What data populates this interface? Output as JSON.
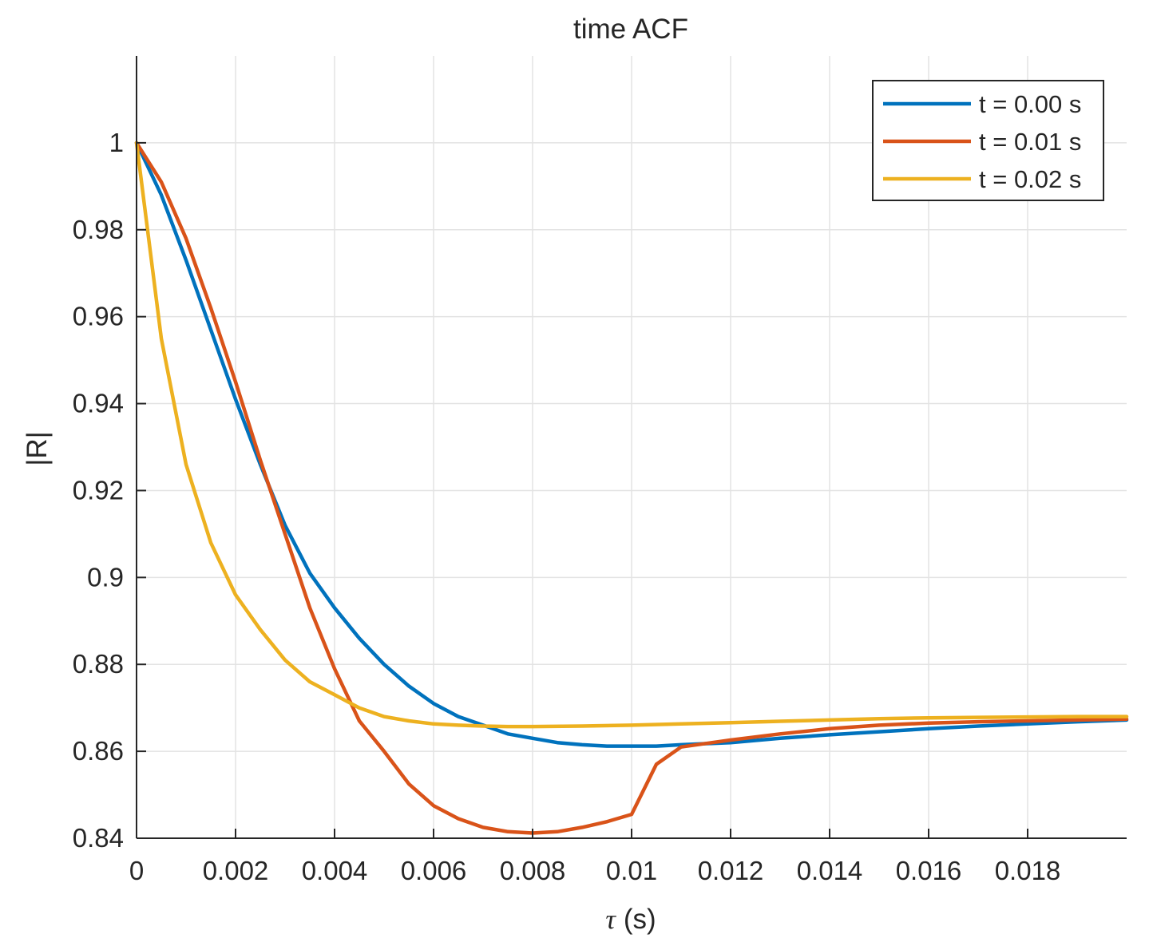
{
  "chart_data": {
    "type": "line",
    "title": "time ACF",
    "xlabel_symbol": "τ",
    "xlabel_unit": "(s)",
    "ylabel": "|R|",
    "xlim": [
      0,
      0.02
    ],
    "ylim": [
      0.84,
      1.02
    ],
    "grid": true,
    "legend_position": "top-right",
    "x_ticks": [
      0,
      0.002,
      0.004,
      0.006,
      0.008,
      0.01,
      0.012,
      0.014,
      0.016,
      0.018
    ],
    "x_tick_labels": [
      "0",
      "0.002",
      "0.004",
      "0.006",
      "0.008",
      "0.01",
      "0.012",
      "0.014",
      "0.016",
      "0.018"
    ],
    "y_ticks": [
      0.84,
      0.86,
      0.88,
      0.9,
      0.92,
      0.94,
      0.96,
      0.98,
      1.0
    ],
    "y_tick_labels": [
      "0.84",
      "0.86",
      "0.88",
      "0.9",
      "0.92",
      "0.94",
      "0.96",
      "0.98",
      "1"
    ],
    "series": [
      {
        "name": "t = 0.00 s",
        "color": "#0072BD",
        "x": [
          0,
          0.0005,
          0.001,
          0.0015,
          0.002,
          0.0025,
          0.003,
          0.0035,
          0.004,
          0.0045,
          0.005,
          0.0055,
          0.006,
          0.0065,
          0.007,
          0.0075,
          0.008,
          0.0085,
          0.009,
          0.0095,
          0.01,
          0.0105,
          0.011,
          0.012,
          0.013,
          0.014,
          0.015,
          0.016,
          0.017,
          0.018,
          0.019,
          0.02
        ],
        "values": [
          1.0,
          0.988,
          0.973,
          0.957,
          0.941,
          0.926,
          0.912,
          0.901,
          0.893,
          0.886,
          0.88,
          0.875,
          0.871,
          0.868,
          0.866,
          0.864,
          0.863,
          0.862,
          0.8615,
          0.8612,
          0.8612,
          0.8612,
          0.8615,
          0.862,
          0.863,
          0.8638,
          0.8645,
          0.8652,
          0.8658,
          0.8663,
          0.8668,
          0.8672
        ]
      },
      {
        "name": "t = 0.01 s",
        "color": "#D95319",
        "x": [
          0,
          0.0005,
          0.001,
          0.0015,
          0.002,
          0.0025,
          0.003,
          0.0035,
          0.004,
          0.0045,
          0.005,
          0.0055,
          0.006,
          0.0065,
          0.007,
          0.0075,
          0.008,
          0.0085,
          0.009,
          0.0095,
          0.01,
          0.0105,
          0.011,
          0.0115,
          0.012,
          0.013,
          0.014,
          0.015,
          0.016,
          0.017,
          0.018,
          0.019,
          0.02
        ],
        "values": [
          1.0,
          0.991,
          0.978,
          0.962,
          0.945,
          0.927,
          0.91,
          0.893,
          0.879,
          0.867,
          0.86,
          0.8525,
          0.8475,
          0.8445,
          0.8425,
          0.8415,
          0.8412,
          0.8415,
          0.8425,
          0.8438,
          0.8455,
          0.857,
          0.861,
          0.8618,
          0.8626,
          0.864,
          0.8652,
          0.866,
          0.8665,
          0.8668,
          0.867,
          0.8672,
          0.8674
        ]
      },
      {
        "name": "t = 0.02 s",
        "color": "#EDB120",
        "x": [
          0,
          0.0005,
          0.001,
          0.0015,
          0.002,
          0.0025,
          0.003,
          0.0035,
          0.004,
          0.0045,
          0.005,
          0.0055,
          0.006,
          0.0065,
          0.007,
          0.0075,
          0.008,
          0.009,
          0.01,
          0.011,
          0.012,
          0.013,
          0.014,
          0.015,
          0.016,
          0.017,
          0.018,
          0.019,
          0.02
        ],
        "values": [
          1.0,
          0.955,
          0.926,
          0.908,
          0.896,
          0.888,
          0.881,
          0.876,
          0.873,
          0.87,
          0.868,
          0.867,
          0.8663,
          0.866,
          0.8658,
          0.8657,
          0.8657,
          0.8658,
          0.866,
          0.8663,
          0.8666,
          0.8669,
          0.8672,
          0.8675,
          0.8677,
          0.8678,
          0.8679,
          0.868,
          0.868
        ]
      }
    ]
  }
}
